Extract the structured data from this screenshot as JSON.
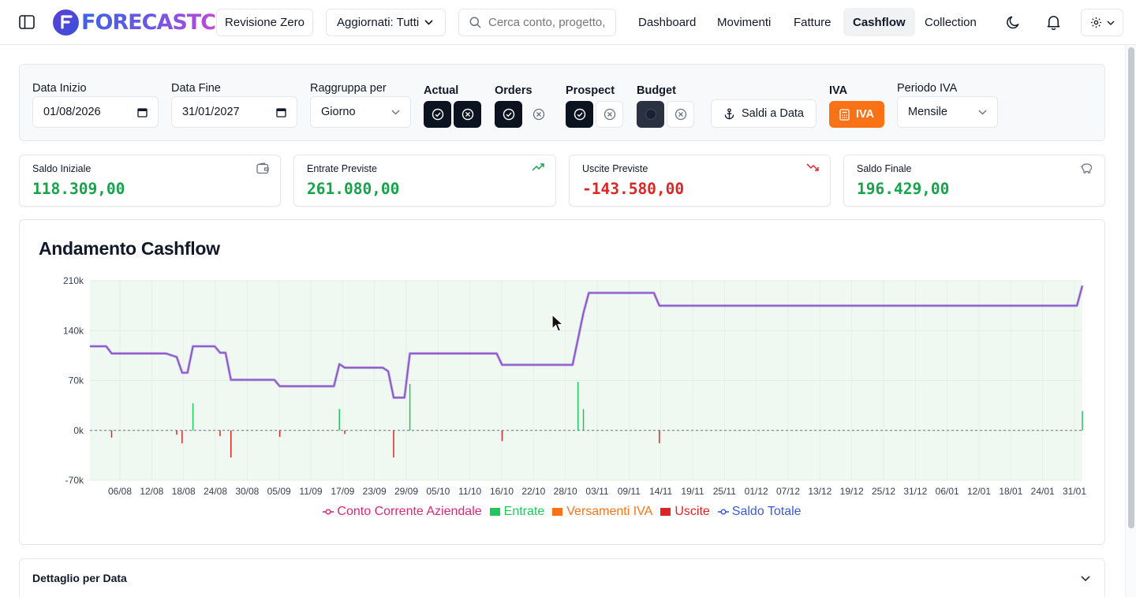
{
  "header": {
    "brand": "FORECASTC",
    "workspace": "Revisione Zero",
    "updated_filter": "Aggiornati: Tutti",
    "search_placeholder": "Cerca conto, progetto,",
    "nav": [
      "Dashboard",
      "Movimenti",
      "Fatture",
      "Cashflow",
      "Collection"
    ],
    "active_nav": "Cashflow"
  },
  "filters": {
    "start_label": "Data Inizio",
    "start_value": "01/08/2026",
    "end_label": "Data Fine",
    "end_value": "31/01/2027",
    "group_label": "Raggruppa per",
    "group_value": "Giorno",
    "actual_label": "Actual",
    "orders_label": "Orders",
    "prospect_label": "Prospect",
    "budget_label": "Budget",
    "saldi_button": "Saldi a Data",
    "iva_label": "IVA",
    "iva_button": "IVA",
    "period_label": "Periodo IVA",
    "period_value": "Mensile"
  },
  "kpis": [
    {
      "label": "Saldo Iniziale",
      "value": "118.309,00",
      "color": "#16a34a",
      "icon": "wallet-icon"
    },
    {
      "label": "Entrate Previste",
      "value": "261.080,00",
      "color": "#16a34a",
      "icon": "trending-up-icon"
    },
    {
      "label": "Uscite Previste",
      "value": "-143.580,00",
      "color": "#dc2626",
      "icon": "trending-down-icon"
    },
    {
      "label": "Saldo Finale",
      "value": "196.429,00",
      "color": "#16a34a",
      "icon": "piggy-bank-icon"
    }
  ],
  "chart_title": "Andamento Cashflow",
  "detail_title": "Dettaglio per Data",
  "colors": {
    "accent_orange": "#f97316",
    "income": "#22c55e",
    "expense": "#dc2626",
    "balance": "#9b4dca",
    "account": "#db2777",
    "vat": "#f97316",
    "total": "#3b5bdb"
  },
  "chart_data": {
    "type": "line",
    "ylim": [
      -70000,
      210000
    ],
    "yticks": [
      "210k",
      "140k",
      "70k",
      "0k",
      "-70k"
    ],
    "ytick_values": [
      210000,
      140000,
      70000,
      0,
      -70000
    ],
    "x_range": [
      "2026-08-01",
      "2027-01-31"
    ],
    "xticks": [
      "06/08",
      "12/08",
      "18/08",
      "24/08",
      "30/08",
      "05/09",
      "11/09",
      "17/09",
      "23/09",
      "29/09",
      "05/10",
      "11/10",
      "16/10",
      "22/10",
      "28/10",
      "03/11",
      "09/11",
      "14/11",
      "19/11",
      "25/11",
      "01/12",
      "07/12",
      "13/12",
      "19/12",
      "25/12",
      "31/12",
      "06/01",
      "12/01",
      "18/01",
      "24/01",
      "31/01"
    ],
    "legend": [
      {
        "name": "Conto Corrente Aziendale",
        "color": "#db2777",
        "kind": "line"
      },
      {
        "name": "Entrate",
        "color": "#22c55e",
        "kind": "bar"
      },
      {
        "name": "Versamenti IVA",
        "color": "#f97316",
        "kind": "bar"
      },
      {
        "name": "Uscite",
        "color": "#dc2626",
        "kind": "bar"
      },
      {
        "name": "Saldo Totale",
        "color": "#3b5bdb",
        "kind": "line"
      }
    ],
    "balance_points": [
      {
        "date": "2026-08-01",
        "value": 118000
      },
      {
        "date": "2026-08-04",
        "value": 118000
      },
      {
        "date": "2026-08-05",
        "value": 108000
      },
      {
        "date": "2026-08-15",
        "value": 108000
      },
      {
        "date": "2026-08-17",
        "value": 103000
      },
      {
        "date": "2026-08-18",
        "value": 81000
      },
      {
        "date": "2026-08-19",
        "value": 81000
      },
      {
        "date": "2026-08-20",
        "value": 118000
      },
      {
        "date": "2026-08-24",
        "value": 118000
      },
      {
        "date": "2026-08-25",
        "value": 109000
      },
      {
        "date": "2026-08-26",
        "value": 109000
      },
      {
        "date": "2026-08-27",
        "value": 71000
      },
      {
        "date": "2026-09-04",
        "value": 71000
      },
      {
        "date": "2026-09-05",
        "value": 62000
      },
      {
        "date": "2026-09-15",
        "value": 62000
      },
      {
        "date": "2026-09-16",
        "value": 93000
      },
      {
        "date": "2026-09-17",
        "value": 88000
      },
      {
        "date": "2026-09-24",
        "value": 88000
      },
      {
        "date": "2026-09-25",
        "value": 83000
      },
      {
        "date": "2026-09-26",
        "value": 46000
      },
      {
        "date": "2026-09-28",
        "value": 46000
      },
      {
        "date": "2026-09-29",
        "value": 108000
      },
      {
        "date": "2026-10-15",
        "value": 108000
      },
      {
        "date": "2026-10-16",
        "value": 92000
      },
      {
        "date": "2026-10-29",
        "value": 92000
      },
      {
        "date": "2026-10-31",
        "value": 165000
      },
      {
        "date": "2026-11-01",
        "value": 193000
      },
      {
        "date": "2026-11-13",
        "value": 193000
      },
      {
        "date": "2026-11-14",
        "value": 175000
      },
      {
        "date": "2027-01-30",
        "value": 175000
      },
      {
        "date": "2027-01-31",
        "value": 203000
      }
    ],
    "income_bars": [
      {
        "date": "2026-08-20",
        "value": 38000
      },
      {
        "date": "2026-09-16",
        "value": 30000
      },
      {
        "date": "2026-09-29",
        "value": 65000
      },
      {
        "date": "2026-10-30",
        "value": 68000
      },
      {
        "date": "2026-10-31",
        "value": 30000
      },
      {
        "date": "2027-01-31",
        "value": 27000
      }
    ],
    "expense_bars": [
      {
        "date": "2026-08-05",
        "value": -10000
      },
      {
        "date": "2026-08-17",
        "value": -6000
      },
      {
        "date": "2026-08-18",
        "value": -18000
      },
      {
        "date": "2026-08-25",
        "value": -8000
      },
      {
        "date": "2026-08-27",
        "value": -38000
      },
      {
        "date": "2026-09-05",
        "value": -9000
      },
      {
        "date": "2026-09-17",
        "value": -5000
      },
      {
        "date": "2026-09-26",
        "value": -38000
      },
      {
        "date": "2026-10-16",
        "value": -15000
      },
      {
        "date": "2026-11-14",
        "value": -18000
      }
    ]
  }
}
